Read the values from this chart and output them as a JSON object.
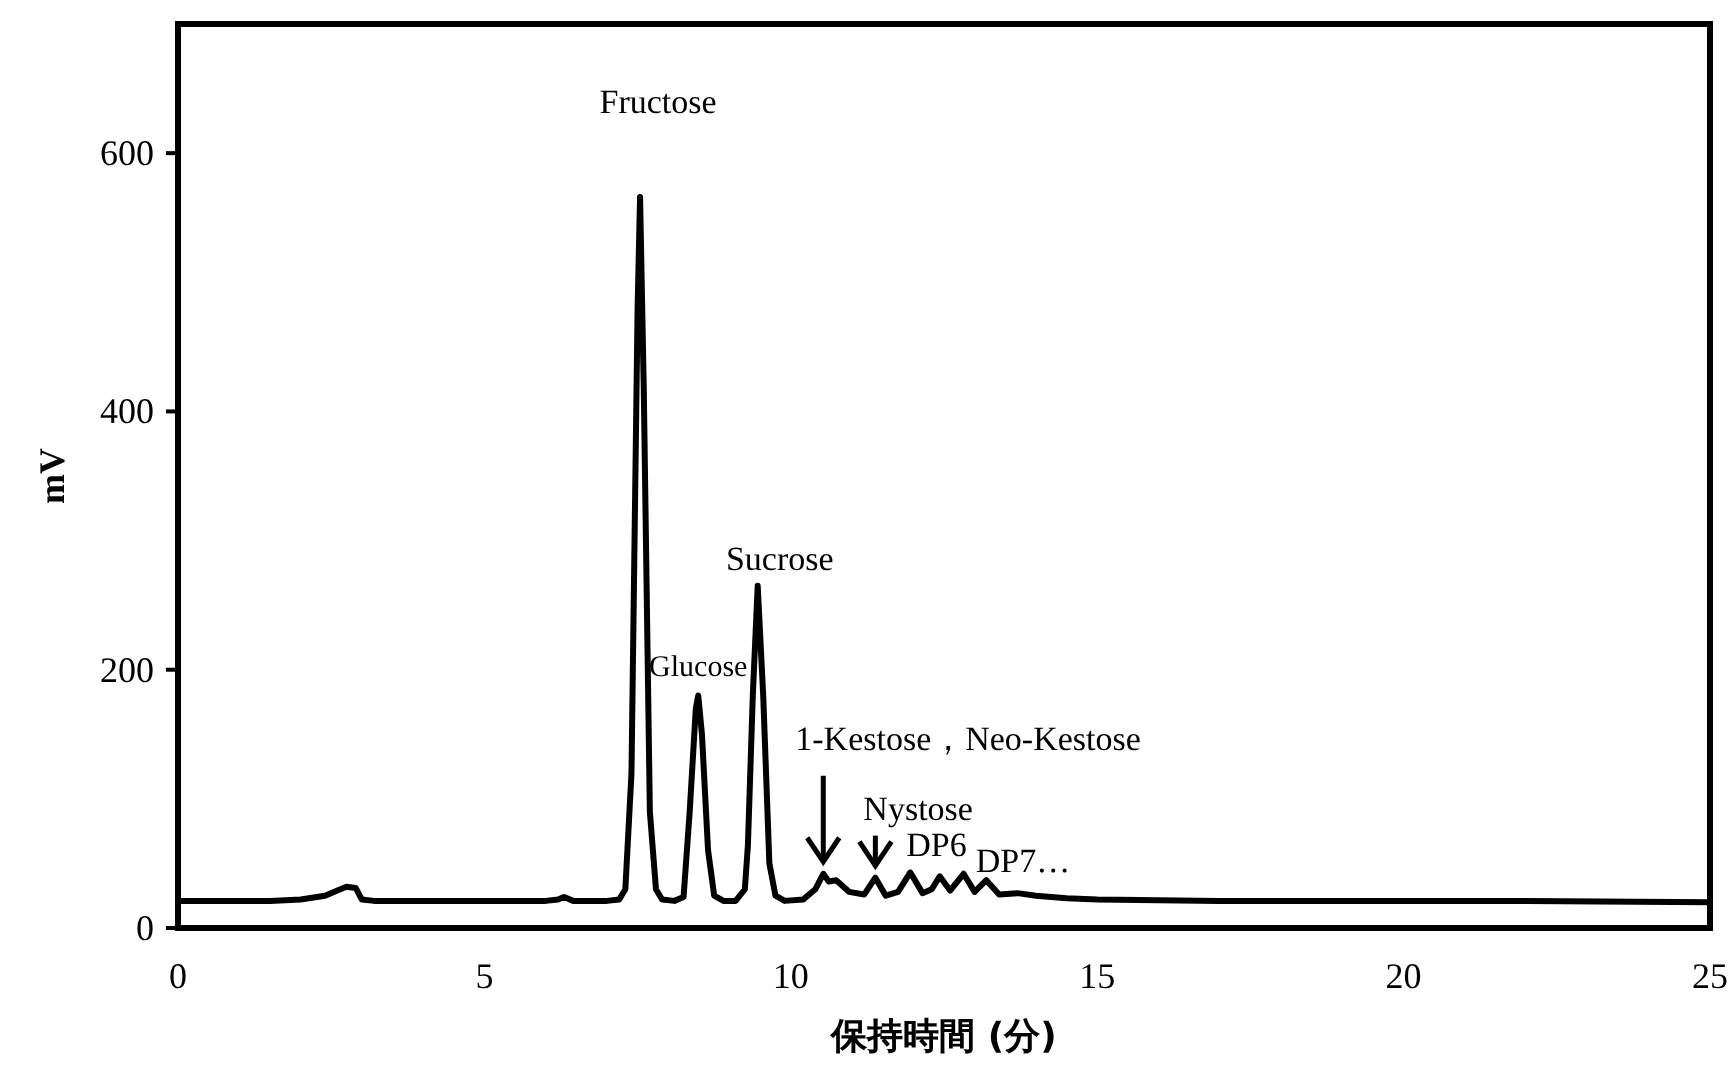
{
  "chart_data": {
    "type": "line",
    "xlabel": "保持時間 (分)",
    "ylabel": "mV",
    "xlim": [
      0,
      25
    ],
    "ylim": [
      0,
      700
    ],
    "xticks": [
      0,
      5,
      10,
      15,
      20,
      25
    ],
    "yticks": [
      0,
      200,
      400,
      600
    ],
    "grid": false,
    "marker": "none",
    "line_style": "solid",
    "series": [
      {
        "color": "#000000",
        "x": [
          0,
          1.5,
          2.0,
          2.4,
          2.6,
          2.75,
          2.9,
          3.0,
          3.2,
          4,
          5,
          6.0,
          6.2,
          6.3,
          6.45,
          7.0,
          7.2,
          7.3,
          7.4,
          7.5,
          7.54,
          7.6,
          7.7,
          7.8,
          7.9,
          8.1,
          8.25,
          8.35,
          8.45,
          8.49,
          8.55,
          8.65,
          8.75,
          8.9,
          9.1,
          9.25,
          9.3,
          9.38,
          9.46,
          9.55,
          9.65,
          9.75,
          9.9,
          10.2,
          10.4,
          10.53,
          10.62,
          10.74,
          10.95,
          11.2,
          11.38,
          11.55,
          11.75,
          11.95,
          12.15,
          12.3,
          12.43,
          12.6,
          12.82,
          13.0,
          13.19,
          13.4,
          13.7,
          14.0,
          14.5,
          15,
          17,
          20,
          22,
          25
        ],
        "values": [
          21,
          21,
          22,
          25,
          29,
          32,
          31,
          22,
          21,
          21,
          21,
          21,
          22,
          24,
          21,
          21,
          22,
          30,
          120,
          480,
          566,
          420,
          90,
          30,
          22,
          21,
          24,
          90,
          170,
          180,
          150,
          60,
          25,
          21,
          21,
          30,
          64,
          180,
          265,
          180,
          50,
          25,
          21,
          22,
          30,
          42,
          36,
          37,
          28,
          26,
          39,
          25,
          28,
          43,
          27,
          30,
          40,
          29,
          42,
          28,
          37,
          26,
          27,
          25,
          23,
          22,
          21,
          21,
          21,
          20
        ]
      }
    ],
    "annotations": [
      {
        "text": "Fructose",
        "x": 7.54,
        "y": 566
      },
      {
        "text": "Glucose",
        "x": 8.49,
        "y": 180
      },
      {
        "text": "Sucrose",
        "x": 9.46,
        "y": 265
      },
      {
        "text": "1-Kestose，Neo-Kestose",
        "x": 10.53,
        "y": 42
      },
      {
        "text": "Nystose",
        "x": 11.38,
        "y": 39
      },
      {
        "text": "DP6",
        "x": 11.95,
        "y": 43
      },
      {
        "text": "DP7…",
        "x": 12.43,
        "y": 40
      }
    ]
  }
}
